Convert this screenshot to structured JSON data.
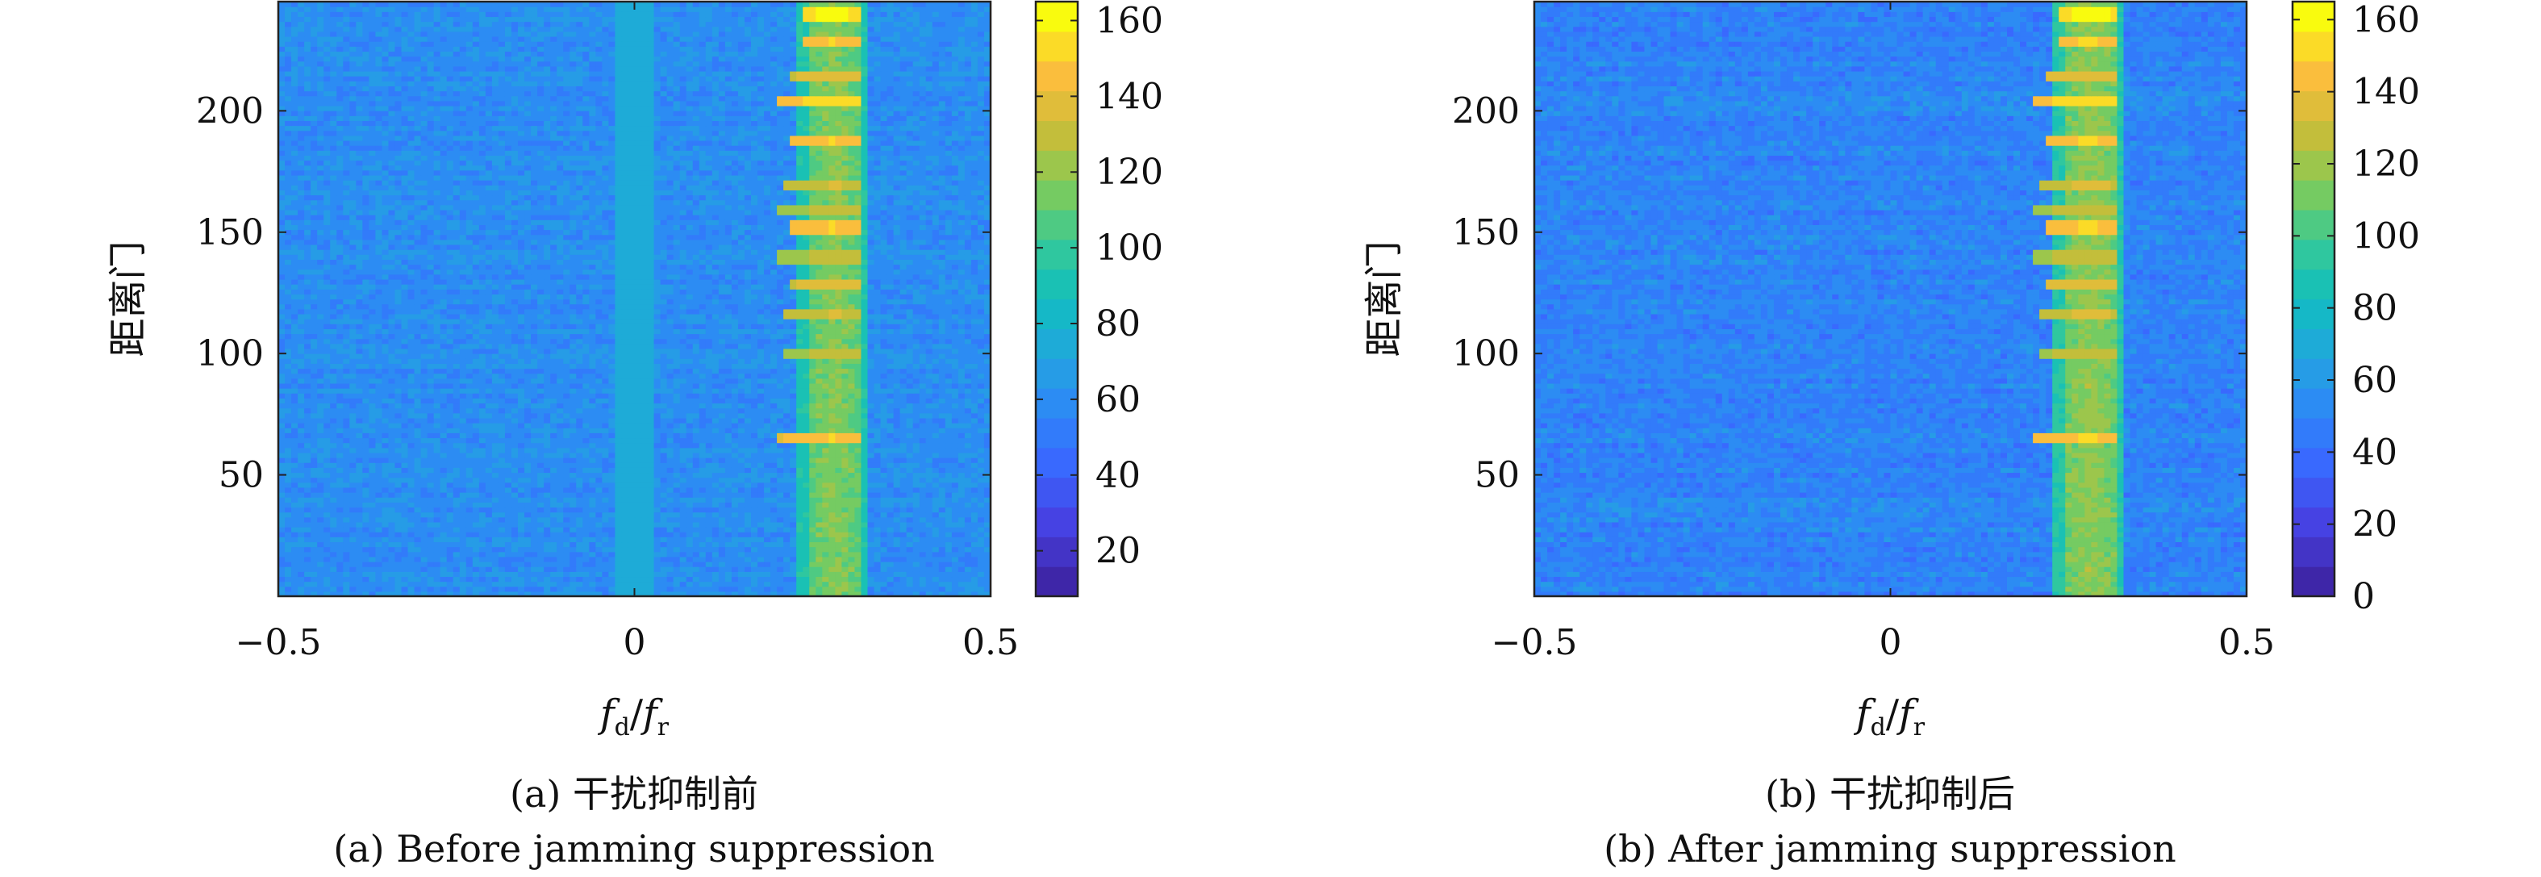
{
  "chart_data": [
    {
      "type": "heatmap",
      "panel": "a",
      "caption_cn": "(a) 干扰抑制前",
      "caption_en": "(a) Before jamming suppression",
      "xlabel": "fd/fr",
      "ylabel": "距离门",
      "xlim": [
        -0.5,
        0.5
      ],
      "ylim": [
        0,
        245
      ],
      "x_ticks": [
        -0.5,
        0,
        0.5
      ],
      "x_tick_labels": [
        "−0.5",
        "0",
        "0.5"
      ],
      "y_ticks": [
        50,
        100,
        150,
        200
      ],
      "y_tick_labels": [
        "50",
        "100",
        "150",
        "200"
      ],
      "colorbar": {
        "min": 8,
        "max": 165,
        "ticks": [
          20,
          40,
          60,
          80,
          100,
          120,
          140,
          160
        ],
        "tick_labels": [
          "20",
          "40",
          "60",
          "80",
          "100",
          "120",
          "140",
          "160"
        ],
        "colormap": "parula",
        "levels": 20
      },
      "features": {
        "background_level": 60,
        "background_variation": 10,
        "zero_doppler_stripe": {
          "x_center": 0,
          "half_width": 0.03,
          "level": 75
        },
        "target_band": {
          "x_center": 0.28,
          "half_width": 0.05,
          "level": 118
        },
        "bright_rows": [
          {
            "row": 65,
            "level": 150,
            "x_start": 0.2
          },
          {
            "row": 100,
            "level": 130,
            "x_start": 0.21
          },
          {
            "row": 116,
            "level": 135,
            "x_start": 0.21
          },
          {
            "row": 128,
            "level": 140,
            "x_start": 0.22
          },
          {
            "row": 140,
            "level": 130,
            "x_start": 0.2
          },
          {
            "row": 152,
            "level": 150,
            "x_start": 0.22
          },
          {
            "row": 160,
            "level": 130,
            "x_start": 0.2
          },
          {
            "row": 170,
            "level": 135,
            "x_start": 0.21
          },
          {
            "row": 187,
            "level": 150,
            "x_start": 0.22
          },
          {
            "row": 205,
            "level": 155,
            "x_start": 0.2
          },
          {
            "row": 215,
            "level": 140,
            "x_start": 0.22
          },
          {
            "row": 228,
            "level": 150,
            "x_start": 0.24
          },
          {
            "row": 240,
            "level": 160,
            "x_start": 0.24
          }
        ]
      }
    },
    {
      "type": "heatmap",
      "panel": "b",
      "caption_cn": "(b) 干扰抑制后",
      "caption_en": "(b) After jamming suppression",
      "xlabel": "fd/fr",
      "ylabel": "距离门",
      "xlim": [
        -0.5,
        0.5
      ],
      "ylim": [
        0,
        245
      ],
      "x_ticks": [
        -0.5,
        0,
        0.5
      ],
      "x_tick_labels": [
        "−0.5",
        "0",
        "0.5"
      ],
      "y_ticks": [
        50,
        100,
        150,
        200
      ],
      "y_tick_labels": [
        "50",
        "100",
        "150",
        "200"
      ],
      "colorbar": {
        "min": 0,
        "max": 165,
        "ticks": [
          0,
          20,
          40,
          60,
          80,
          100,
          120,
          140,
          160
        ],
        "tick_labels": [
          "0",
          "20",
          "40",
          "60",
          "80",
          "100",
          "120",
          "140",
          "160"
        ],
        "colormap": "parula",
        "levels": 20
      },
      "features": {
        "background_level": 50,
        "background_variation": 12,
        "zero_doppler_stripe": null,
        "target_band": {
          "x_center": 0.28,
          "half_width": 0.05,
          "level": 118
        },
        "bright_rows": [
          {
            "row": 65,
            "level": 150,
            "x_start": 0.2
          },
          {
            "row": 100,
            "level": 130,
            "x_start": 0.21
          },
          {
            "row": 116,
            "level": 135,
            "x_start": 0.21
          },
          {
            "row": 128,
            "level": 140,
            "x_start": 0.22
          },
          {
            "row": 140,
            "level": 130,
            "x_start": 0.2
          },
          {
            "row": 152,
            "level": 150,
            "x_start": 0.22
          },
          {
            "row": 160,
            "level": 130,
            "x_start": 0.2
          },
          {
            "row": 170,
            "level": 135,
            "x_start": 0.21
          },
          {
            "row": 187,
            "level": 150,
            "x_start": 0.22
          },
          {
            "row": 205,
            "level": 155,
            "x_start": 0.2
          },
          {
            "row": 215,
            "level": 140,
            "x_start": 0.22
          },
          {
            "row": 228,
            "level": 150,
            "x_start": 0.24
          },
          {
            "row": 240,
            "level": 160,
            "x_start": 0.24
          }
        ]
      }
    }
  ]
}
